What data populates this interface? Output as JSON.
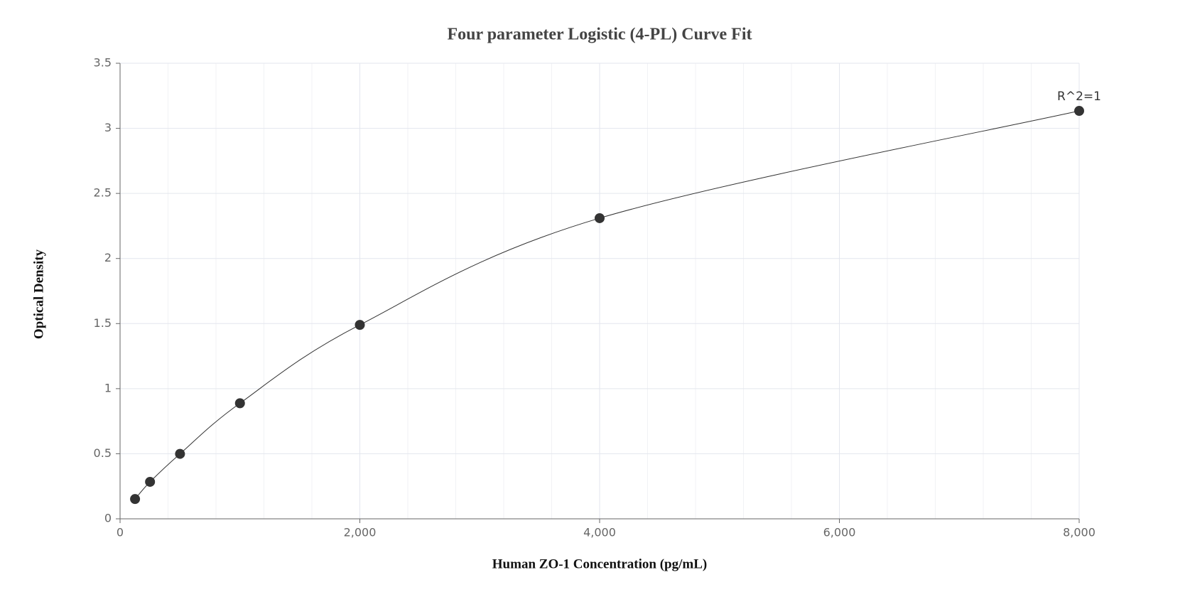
{
  "chart_data": {
    "type": "scatter",
    "title": "Four parameter Logistic (4-PL) Curve Fit",
    "x_label": "Human ZO-1 Concentration (pg/mL)",
    "y_label": "Optical Density",
    "x": [
      125,
      250,
      500,
      1000,
      2000,
      4000,
      8000
    ],
    "values": [
      0.152,
      0.284,
      0.499,
      0.888,
      1.49,
      2.31,
      3.134
    ],
    "color": "#333333",
    "fit_line": true,
    "annotation": "R^2=1",
    "xlim": [
      0,
      8000
    ],
    "xticks": [
      0,
      {
        "value": 2000,
        "label": "2,000"
      },
      {
        "value": 4000,
        "label": "4,000"
      },
      {
        "value": 6000,
        "label": "6,000"
      },
      {
        "value": 8000,
        "label": "8,000"
      }
    ],
    "ylim": [
      0,
      3.5
    ],
    "yticks": [
      0,
      0.5,
      1,
      1.5,
      2,
      2.5,
      3,
      3.5
    ],
    "grid": true,
    "minor_grid": true
  }
}
